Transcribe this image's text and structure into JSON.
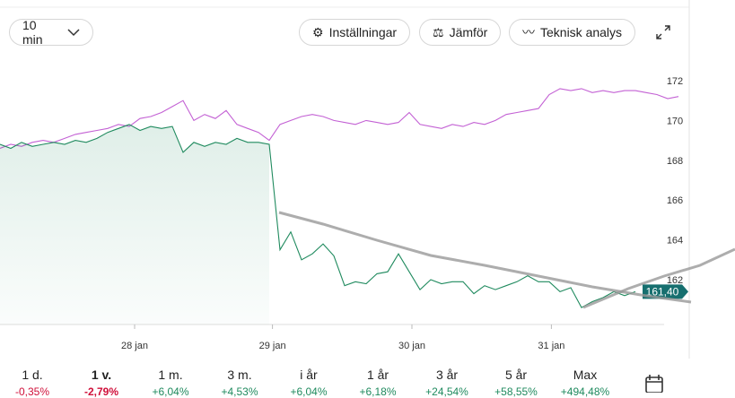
{
  "toolbar": {
    "interval": "10 min",
    "buttons": [
      "Inställningar",
      "Jämför",
      "Teknisk analys"
    ]
  },
  "periods": [
    {
      "label": "1 d.",
      "change": "-0,35%"
    },
    {
      "label": "1 v.",
      "change": "-2,79%"
    },
    {
      "label": "1 m.",
      "change": "+6,04%"
    },
    {
      "label": "3 m.",
      "change": "+4,53%"
    },
    {
      "label": "i år",
      "change": "+6,04%"
    },
    {
      "label": "1 år",
      "change": "+6,18%"
    },
    {
      "label": "3 år",
      "change": "+24,54%"
    },
    {
      "label": "5 år",
      "change": "+58,55%"
    },
    {
      "label": "Max",
      "change": "+494,48%"
    }
  ],
  "chart_data": {
    "type": "line",
    "xlim": [
      0,
      64
    ],
    "xticks": [
      {
        "value": 12.5,
        "label": "28 jan"
      },
      {
        "value": 25.3,
        "label": "29 jan"
      },
      {
        "value": 38.25,
        "label": "30 jan"
      },
      {
        "value": 51.2,
        "label": "31 jan"
      }
    ],
    "ylim": [
      159.75,
      172.9
    ],
    "yticks": [
      162,
      164,
      166,
      168,
      170,
      172
    ],
    "series": [
      {
        "color": "#c361d4",
        "values": [
          168.6,
          168.8,
          168.7,
          168.9,
          169.0,
          168.9,
          169.1,
          169.3,
          169.4,
          169.5,
          169.6,
          169.8,
          169.7,
          170.1,
          170.2,
          170.4,
          170.7,
          171.0,
          170.0,
          170.3,
          170.1,
          170.5,
          169.8,
          169.6,
          169.4,
          169.0,
          169.8,
          170.0,
          170.2,
          170.3,
          170.2,
          170.0,
          169.9,
          169.8,
          170.0,
          169.9,
          169.8,
          169.9,
          170.4,
          169.8,
          169.7,
          169.6,
          169.8,
          169.7,
          169.9,
          169.8,
          170.0,
          170.3,
          170.4,
          170.5,
          170.6,
          171.3,
          171.6,
          171.5,
          171.6,
          171.4,
          171.5,
          171.4,
          171.5,
          171.5,
          171.4,
          171.3,
          171.1,
          171.2
        ]
      },
      {
        "color": "#1f8a5e",
        "values": [
          168.8,
          168.6,
          168.9,
          168.7,
          168.8,
          168.9,
          168.8,
          169.0,
          168.9,
          169.1,
          169.4,
          169.6,
          169.8,
          169.5,
          169.7,
          169.6,
          169.7,
          168.4,
          168.9,
          168.7,
          168.9,
          168.8,
          169.1,
          168.9,
          168.9,
          168.8,
          163.5,
          164.4,
          163.0,
          163.3,
          163.8,
          163.2,
          161.7,
          161.9,
          161.8,
          162.3,
          162.4,
          163.3,
          162.4,
          161.5,
          162.0,
          161.8,
          161.9,
          161.9,
          161.3,
          161.7,
          161.5,
          161.7,
          161.9,
          162.2,
          161.9,
          161.9,
          161.4,
          161.6,
          160.6,
          160.9,
          161.1,
          161.4,
          161.2,
          161.4
        ]
      }
    ],
    "last_value": {
      "value": 161.4,
      "label": "161,40"
    }
  }
}
